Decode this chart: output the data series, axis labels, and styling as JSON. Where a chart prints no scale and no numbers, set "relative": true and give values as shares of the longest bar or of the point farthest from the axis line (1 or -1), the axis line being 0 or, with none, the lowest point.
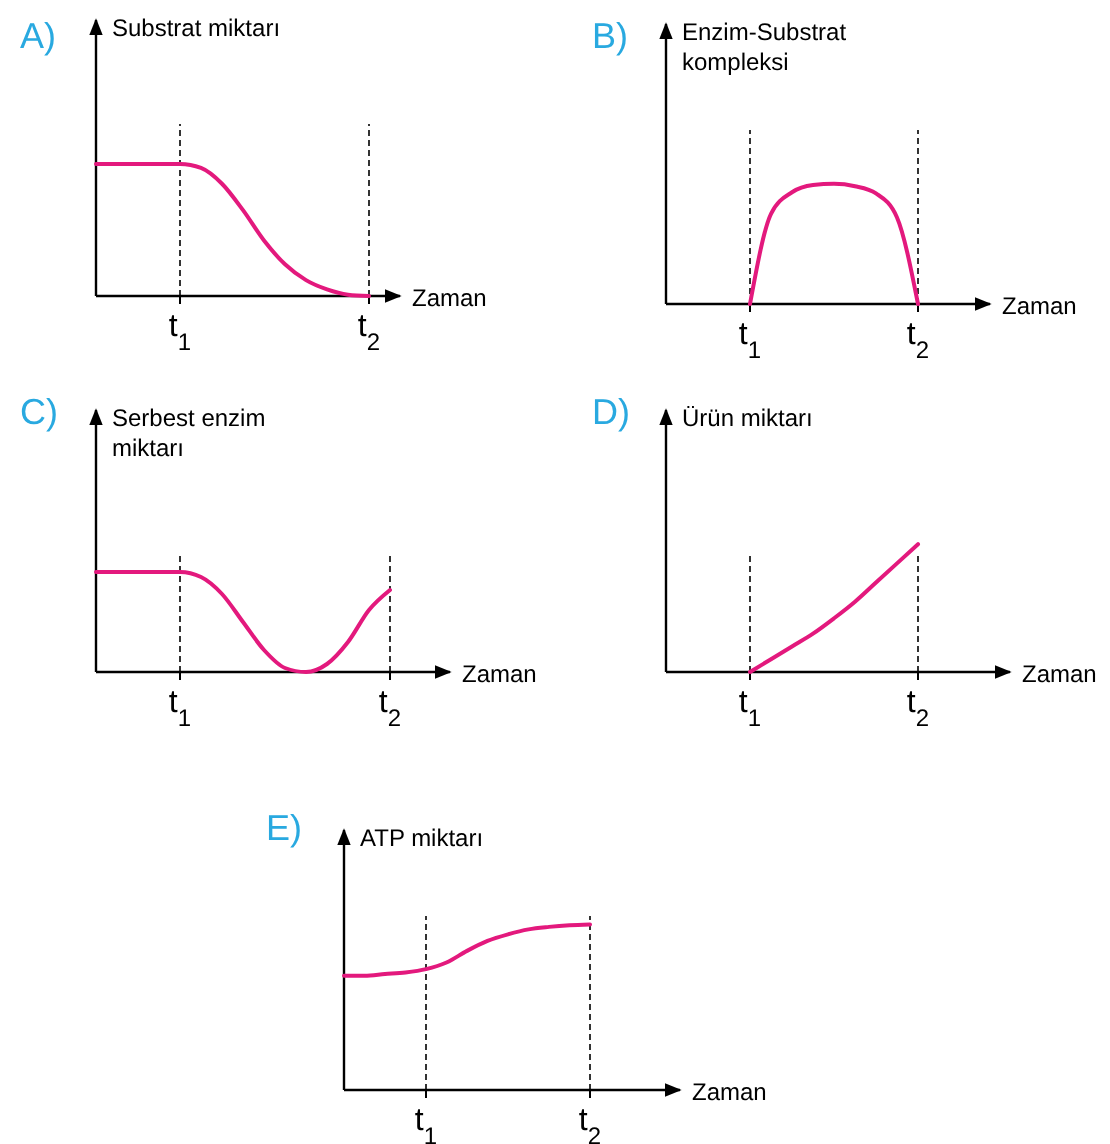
{
  "chart_data": [
    {
      "type": "line",
      "title": "A)",
      "ylabel": "Substrat miktarı",
      "xlabel": "Zaman",
      "relative": true,
      "color": "#e3197d",
      "categories": [
        null,
        null,
        null,
        null,
        "t$_{1}$",
        null,
        null,
        null,
        null,
        null,
        null,
        null,
        null,
        "t$_{2}$"
      ],
      "values": [
        1,
        1,
        1,
        1,
        1,
        0.97,
        0.85,
        0.65,
        0.42,
        0.24,
        0.12,
        0.05,
        0.01,
        0
      ],
      "ref_lines": [
        {
          "axis": "x",
          "value": "t$_{1}$",
          "line_style": "dashed"
        },
        {
          "axis": "x",
          "value": "t$_{2}$",
          "line_style": "dashed"
        }
      ]
    },
    {
      "type": "line",
      "title": "B)",
      "ylabel": "Enzim-Substrat kompleksi",
      "xlabel": "Zaman",
      "relative": true,
      "color": "#e3197d",
      "categories": [
        null,
        null,
        null,
        null,
        "t$_{1}$",
        null,
        null,
        null,
        null,
        null,
        null,
        null,
        "t$_{2}$"
      ],
      "values": [
        null,
        null,
        null,
        null,
        0,
        0.75,
        0.93,
        0.99,
        1,
        0.98,
        0.92,
        0.72,
        0
      ],
      "ref_lines": [
        {
          "axis": "x",
          "value": "t$_{1}$",
          "line_style": "dashed"
        },
        {
          "axis": "x",
          "value": "t$_{2}$",
          "line_style": "dashed"
        }
      ]
    },
    {
      "type": "line",
      "title": "C)",
      "ylabel": "Serbest enzim miktarı",
      "xlabel": "Zaman",
      "relative": true,
      "color": "#e3197d",
      "categories": [
        null,
        null,
        null,
        null,
        "t$_{1}$",
        null,
        null,
        null,
        null,
        null,
        null,
        null,
        null,
        null,
        "t$_{2}$"
      ],
      "values": [
        1,
        1,
        1,
        1,
        1,
        0.95,
        0.78,
        0.5,
        0.22,
        0.04,
        0,
        0.08,
        0.3,
        0.62,
        0.82
      ],
      "ref_lines": [
        {
          "axis": "x",
          "value": "t$_{1}$",
          "line_style": "dashed"
        },
        {
          "axis": "x",
          "value": "t$_{2}$",
          "line_style": "dashed"
        }
      ]
    },
    {
      "type": "line",
      "title": "D)",
      "ylabel": "Ürün miktarı",
      "xlabel": "Zaman",
      "relative": true,
      "color": "#e3197d",
      "categories": [
        null,
        null,
        null,
        null,
        "t$_{1}$",
        null,
        null,
        null,
        null,
        null,
        null,
        null,
        "t$_{2}$"
      ],
      "values": [
        null,
        null,
        null,
        null,
        0,
        0.1,
        0.2,
        0.3,
        0.42,
        0.55,
        0.7,
        0.85,
        1
      ],
      "ref_lines": [
        {
          "axis": "x",
          "value": "t$_{1}$",
          "line_style": "dashed"
        },
        {
          "axis": "x",
          "value": "t$_{2}$",
          "line_style": "dashed"
        }
      ]
    },
    {
      "type": "line",
      "title": "E)",
      "ylabel": "ATP miktarı",
      "xlabel": "Zaman",
      "relative": true,
      "color": "#e3197d",
      "categories": [
        null,
        null,
        null,
        null,
        "t$_{1}$",
        null,
        null,
        null,
        null,
        null,
        null,
        null,
        "t$_{2}$"
      ],
      "values": [
        0.69,
        0.69,
        0.7,
        0.71,
        0.73,
        0.77,
        0.84,
        0.9,
        0.94,
        0.97,
        0.985,
        0.995,
        1
      ],
      "ref_lines": [
        {
          "axis": "x",
          "value": "t$_{1}$",
          "line_style": "dashed"
        },
        {
          "axis": "x",
          "value": "t$_{2}$",
          "line_style": "dashed"
        }
      ]
    }
  ]
}
